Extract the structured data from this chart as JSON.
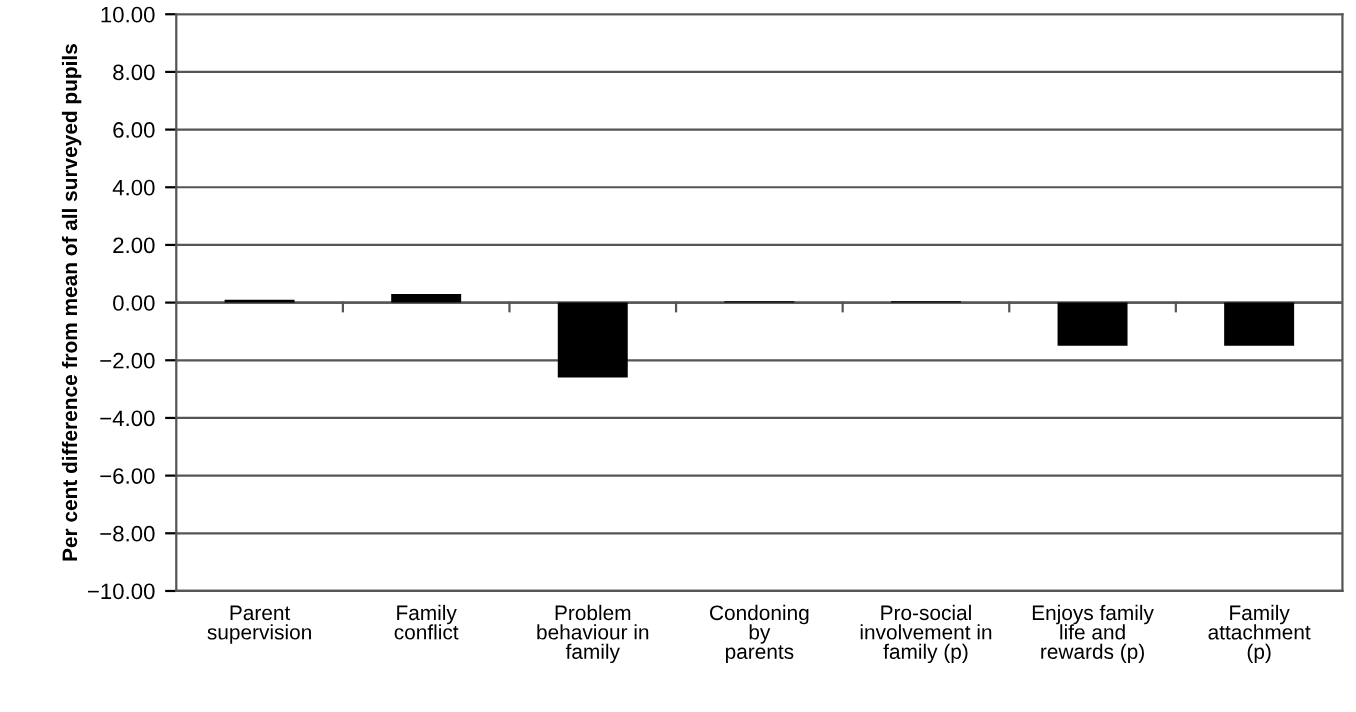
{
  "chart_data": {
    "type": "bar",
    "ylabel": "Per cent difference from mean of all surveyed pupils",
    "categories": [
      "Parent\nsupervision",
      "Family\nconflict",
      "Problem\nbehaviour in\nfamily",
      "Condoning\nby\nparents",
      "Pro-social\ninvolvement in\nfamily (p)",
      "Enjoys family\nlife and\nrewards (p)",
      "Family\nattachment\n(p)"
    ],
    "values": [
      0.1,
      0.3,
      -2.6,
      0.05,
      0.05,
      -1.5,
      -1.5
    ],
    "color": "#000000",
    "ylim": [
      -10,
      10
    ],
    "yticks": [
      {
        "value": -10,
        "label": "−10.00"
      },
      {
        "value": -8,
        "label": "−8.00"
      },
      {
        "value": -6,
        "label": "−6.00"
      },
      {
        "value": -4,
        "label": "−4.00"
      },
      {
        "value": -2,
        "label": "−2.00"
      },
      {
        "value": 0,
        "label": "0.00"
      },
      {
        "value": 2,
        "label": "2.00"
      },
      {
        "value": 4,
        "label": "4.00"
      },
      {
        "value": 6,
        "label": "6.00"
      },
      {
        "value": 8,
        "label": "8.00"
      },
      {
        "value": 10,
        "label": "10.00"
      }
    ],
    "grid": "y"
  }
}
